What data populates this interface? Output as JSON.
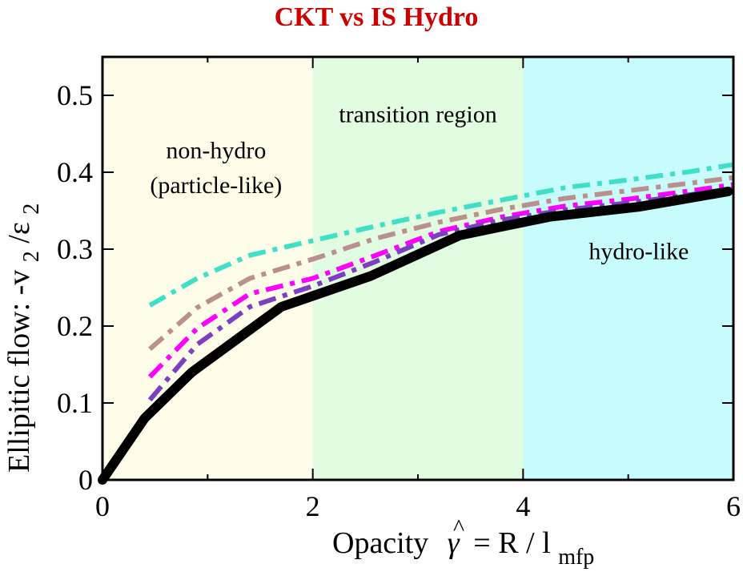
{
  "chart_data": {
    "type": "line",
    "title": "CKT vs IS Hydro",
    "title_color": "#cc0000",
    "xlabel": {
      "prefix": "Opacity",
      "gamma": "γ",
      "hat": "^",
      "equals_r": "= R / l",
      "sub": "mfp"
    },
    "ylabel": {
      "main": "Ellipitic flow: -v",
      "sub1": "2",
      "slash": "/ε",
      "sub2": "2"
    },
    "xlim": [
      0,
      6
    ],
    "ylim": [
      0,
      0.55
    ],
    "x_ticks": [
      0,
      2,
      4,
      6
    ],
    "x_tick_labels": [
      "0",
      "2",
      "4",
      "6"
    ],
    "y_ticks": [
      0,
      0.1,
      0.2,
      0.3,
      0.4,
      0.5
    ],
    "y_tick_labels": [
      "0",
      "0.1",
      "0.2",
      "0.3",
      "0.4",
      "0.5"
    ],
    "regions": [
      {
        "x0": 0,
        "x1": 2,
        "color": "#fdfde9",
        "labels": [
          "non-hydro",
          "(particle-like)"
        ],
        "label_x": 1.08,
        "label_y": [
          0.418,
          0.373
        ]
      },
      {
        "x0": 2,
        "x1": 4,
        "color": "#e1fce1",
        "labels": [
          "transition region"
        ],
        "label_x": 3.0,
        "label_y": [
          0.465
        ]
      },
      {
        "x0": 4,
        "x1": 6,
        "color": "#c8fcfc",
        "labels": [
          "hydro-like"
        ],
        "label_x": 5.1,
        "label_y": [
          0.287
        ]
      }
    ],
    "series": [
      {
        "color": "#40e0c8",
        "style": "dashdot",
        "width": 6,
        "x": [
          0.45,
          0.9,
          1.4,
          2.0,
          2.6,
          3.2,
          3.8,
          4.4,
          5.0,
          5.6,
          6.0
        ],
        "y": [
          0.227,
          0.262,
          0.292,
          0.311,
          0.33,
          0.348,
          0.364,
          0.38,
          0.39,
          0.401,
          0.41
        ]
      },
      {
        "color": "#bc8f8f",
        "style": "dashdot",
        "width": 6,
        "x": [
          0.45,
          0.9,
          1.4,
          2.0,
          2.6,
          3.2,
          3.8,
          4.4,
          5.0,
          5.6,
          6.0
        ],
        "y": [
          0.17,
          0.224,
          0.262,
          0.287,
          0.314,
          0.335,
          0.352,
          0.366,
          0.376,
          0.386,
          0.393
        ]
      },
      {
        "color": "#ff00ff",
        "style": "dashdot",
        "width": 6,
        "x": [
          0.45,
          0.9,
          1.4,
          2.0,
          2.6,
          3.2,
          3.8,
          4.4,
          5.0,
          5.6,
          6.0
        ],
        "y": [
          0.134,
          0.197,
          0.242,
          0.262,
          0.292,
          0.323,
          0.342,
          0.356,
          0.365,
          0.376,
          0.384
        ]
      },
      {
        "color": "#7b3fc0",
        "style": "dashdot",
        "width": 6,
        "x": [
          0.45,
          0.9,
          1.4,
          2.0,
          2.6,
          3.2,
          3.8,
          4.4,
          5.0,
          5.6,
          6.0
        ],
        "y": [
          0.104,
          0.176,
          0.225,
          0.252,
          0.284,
          0.319,
          0.338,
          0.351,
          0.36,
          0.371,
          0.378
        ]
      },
      {
        "color": "#000000",
        "style": "solid",
        "width": 12,
        "x": [
          0,
          0.4,
          0.85,
          1.7,
          2.55,
          3.4,
          4.25,
          5.1,
          5.95
        ],
        "y": [
          0,
          0.08,
          0.14,
          0.225,
          0.265,
          0.318,
          0.342,
          0.355,
          0.375
        ]
      }
    ]
  }
}
